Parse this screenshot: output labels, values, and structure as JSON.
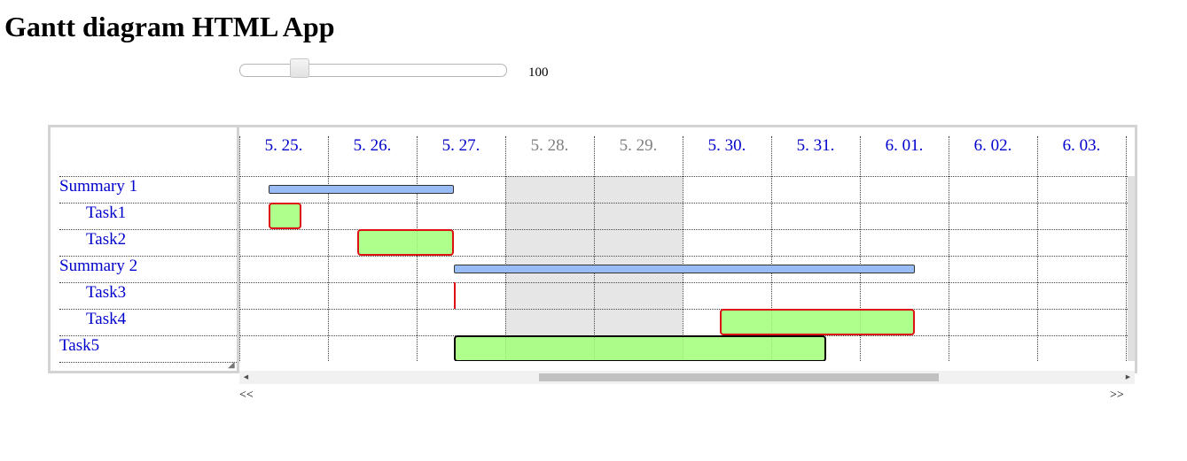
{
  "page": {
    "title": "Gantt diagram HTML App"
  },
  "zoom": {
    "value": "100",
    "position": 0.19
  },
  "resize_grip": "◢",
  "scrollbar": {
    "left_arrow": "◀",
    "right_arrow": "▶",
    "position": 0.33,
    "visible_fraction": 0.46
  },
  "nav": {
    "prev_label": "<<",
    "next_label": ">>"
  },
  "gantt": {
    "days": [
      {
        "label": "5. 25.",
        "weekend": false
      },
      {
        "label": "5. 26.",
        "weekend": false
      },
      {
        "label": "5. 27.",
        "weekend": false
      },
      {
        "label": "5. 28.",
        "weekend": true
      },
      {
        "label": "5. 29.",
        "weekend": true
      },
      {
        "label": "5. 30.",
        "weekend": false
      },
      {
        "label": "5. 31.",
        "weekend": false
      },
      {
        "label": "6. 01.",
        "weekend": false
      },
      {
        "label": "6. 02.",
        "weekend": false
      },
      {
        "label": "6. 03.",
        "weekend": false
      }
    ],
    "rows": [
      {
        "name": "Summary 1",
        "type": "summary",
        "indent": 0,
        "start": 0.33,
        "end": 2.42
      },
      {
        "name": "Task1",
        "type": "task",
        "indent": 1,
        "start": 0.33,
        "end": 0.7
      },
      {
        "name": "Task2",
        "type": "task",
        "indent": 1,
        "start": 1.33,
        "end": 2.42
      },
      {
        "name": "Summary 2",
        "type": "summary",
        "indent": 0,
        "start": 2.42,
        "end": 7.62
      },
      {
        "name": "Task3",
        "type": "milestone",
        "indent": 1,
        "start": 2.42,
        "end": 2.42
      },
      {
        "name": "Task4",
        "type": "task",
        "indent": 1,
        "start": 5.42,
        "end": 7.62
      },
      {
        "name": "Task5",
        "type": "task-dark",
        "indent": 0,
        "start": 2.42,
        "end": 6.62
      }
    ],
    "colors": {
      "summary_fill": "#99bbf6",
      "task_fill": "#a0ff78",
      "task_border": "#dd1111",
      "weekend_bg": "#e6e6e6",
      "link": "#0000cc"
    }
  }
}
